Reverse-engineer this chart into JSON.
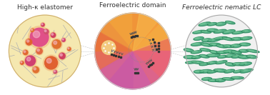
{
  "title_left": "High-κ elastomer",
  "title_mid": "Ferroelectric domain",
  "title_right": "Ferroelectric nematic LC",
  "bg_color": "#ffffff",
  "circle1_bg": "#f5e8b0",
  "circle2_colors": [
    "#f5c44a",
    "#f08030",
    "#e05090",
    "#c040a0"
  ],
  "circle3_bg": "#e8e8e8",
  "lc_color": "#40a878",
  "elastomer_bg": "#f5e8b0",
  "droplet_colors": [
    "#d04080",
    "#e06030",
    "#c83060"
  ],
  "font_size_title": 6.5
}
